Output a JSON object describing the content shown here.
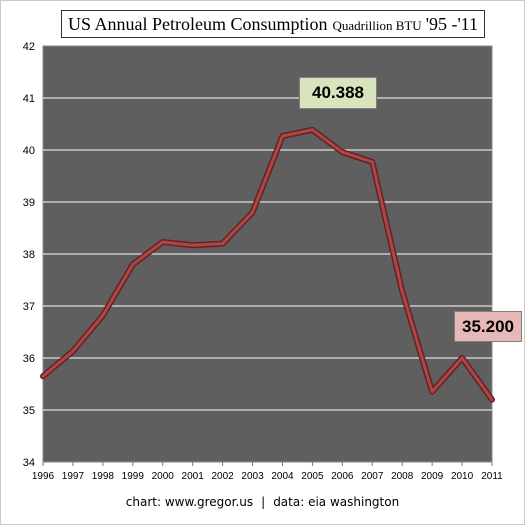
{
  "chart_data": {
    "type": "line",
    "title": "US Annual Petroleum Consumption",
    "title_unit": "Quadrillion BTU",
    "title_years": "'95 -'11",
    "x": [
      "1996",
      "1997",
      "1998",
      "1999",
      "2000",
      "2001",
      "2002",
      "2003",
      "2004",
      "2005",
      "2006",
      "2007",
      "2008",
      "2009",
      "2010",
      "2011"
    ],
    "values": [
      35.65,
      36.13,
      36.82,
      37.8,
      38.23,
      38.17,
      38.2,
      38.8,
      40.27,
      40.388,
      39.96,
      39.77,
      37.28,
      35.35,
      36.0,
      35.2
    ],
    "ylim": [
      34,
      42
    ],
    "yticks": [
      "34",
      "35",
      "36",
      "37",
      "38",
      "39",
      "40",
      "41",
      "42"
    ],
    "grid": true,
    "callouts": [
      {
        "label": "40.388",
        "year": "2005",
        "color": "#d8e4bc"
      },
      {
        "label": "35.200",
        "year": "2011",
        "color": "#e6b9b8"
      }
    ],
    "colors": {
      "plot_bg": "#5f5f5f",
      "grid": "#ffffff",
      "line_outer": "#6a1f1f",
      "line_inner": "#a84848"
    }
  },
  "footer": {
    "credit": "chart: www.gregor.us",
    "separator": "|",
    "source": "data: eia washington"
  }
}
